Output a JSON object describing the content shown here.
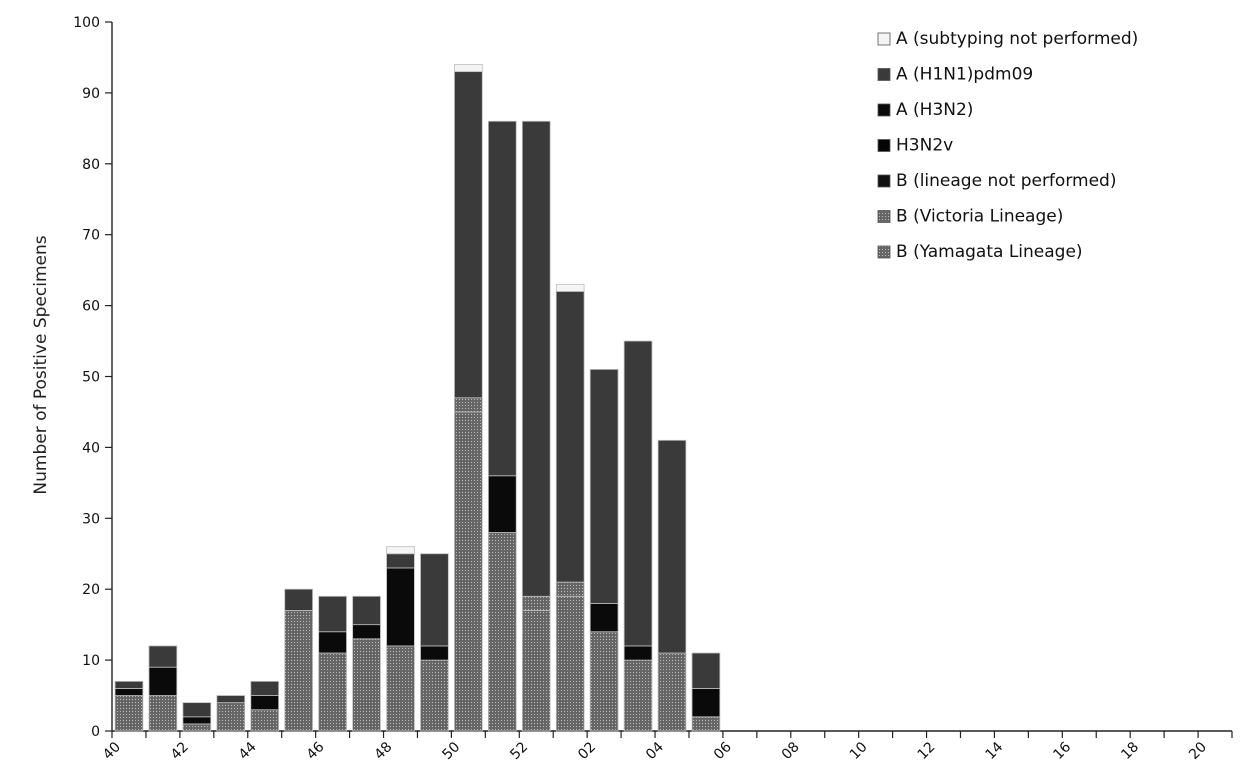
{
  "chart_data": {
    "type": "bar",
    "stacked": true,
    "title": "",
    "xlabel": "",
    "ylabel": "Number of Positive Specimens",
    "ylim": [
      0,
      100
    ],
    "yticks": [
      0,
      10,
      20,
      30,
      40,
      50,
      60,
      70,
      80,
      90,
      100
    ],
    "grid": false,
    "legend_position": "top-right",
    "categories": [
      "40",
      "41",
      "42",
      "43",
      "44",
      "45",
      "46",
      "47",
      "48",
      "49",
      "50",
      "51",
      "52",
      "01",
      "02",
      "03",
      "04",
      "05",
      "06",
      "07",
      "08",
      "09",
      "10",
      "11",
      "12",
      "13",
      "14",
      "15",
      "16",
      "17",
      "18",
      "19",
      "20"
    ],
    "tick_labels": [
      "40",
      "42",
      "44",
      "46",
      "48",
      "50",
      "52",
      "02",
      "04",
      "06",
      "08",
      "10",
      "12",
      "14",
      "16",
      "18",
      "20"
    ],
    "series": [
      {
        "name": "B (Yamagata Lineage)",
        "color": "#2b2b2b",
        "values": [
          5,
          5,
          1,
          4,
          3,
          17,
          11,
          13,
          12,
          10,
          45,
          28,
          17,
          19,
          14,
          10,
          11,
          2,
          0,
          0,
          0,
          0,
          0,
          0,
          0,
          0,
          0,
          0,
          0,
          0,
          0,
          0,
          0
        ]
      },
      {
        "name": "B (Victoria Lineage)",
        "color": "#8a8a8a",
        "values": [
          0,
          0,
          0,
          0,
          0,
          0,
          0,
          0,
          0,
          0,
          2,
          0,
          2,
          2,
          0,
          0,
          0,
          0,
          0,
          0,
          0,
          0,
          0,
          0,
          0,
          0,
          0,
          0,
          0,
          0,
          0,
          0,
          0
        ]
      },
      {
        "name": "B (lineage not performed)",
        "color": "#111111",
        "values": [
          0,
          0,
          0,
          0,
          0,
          0,
          0,
          0,
          0,
          0,
          0,
          0,
          0,
          0,
          0,
          0,
          0,
          0,
          0,
          0,
          0,
          0,
          0,
          0,
          0,
          0,
          0,
          0,
          0,
          0,
          0,
          0,
          0
        ]
      },
      {
        "name": "H3N2v",
        "color": "#050505",
        "values": [
          0,
          0,
          0,
          0,
          0,
          0,
          0,
          0,
          0,
          0,
          0,
          0,
          0,
          0,
          0,
          0,
          0,
          0,
          0,
          0,
          0,
          0,
          0,
          0,
          0,
          0,
          0,
          0,
          0,
          0,
          0,
          0,
          0
        ]
      },
      {
        "name": "A (H3N2)",
        "color": "#0a0a0a",
        "values": [
          1,
          4,
          1,
          0,
          2,
          0,
          3,
          2,
          11,
          2,
          0,
          8,
          0,
          0,
          4,
          2,
          0,
          4,
          0,
          0,
          0,
          0,
          0,
          0,
          0,
          0,
          0,
          0,
          0,
          0,
          0,
          0,
          0
        ]
      },
      {
        "name": "A (H1N1)pdm09",
        "color": "#3a3a3a",
        "values": [
          1,
          3,
          2,
          1,
          2,
          3,
          5,
          4,
          2,
          13,
          46,
          50,
          67,
          41,
          33,
          43,
          30,
          5,
          0,
          0,
          0,
          0,
          0,
          0,
          0,
          0,
          0,
          0,
          0,
          0,
          0,
          0,
          0
        ]
      },
      {
        "name": "A (subtyping not performed)",
        "color": "#f4f4f4",
        "values": [
          0,
          0,
          0,
          0,
          0,
          0,
          0,
          0,
          1,
          0,
          1,
          0,
          0,
          1,
          0,
          0,
          0,
          0,
          0,
          0,
          0,
          0,
          0,
          0,
          0,
          0,
          0,
          0,
          0,
          0,
          0,
          0,
          0
        ]
      }
    ],
    "legend": [
      "A (subtyping not performed)",
      "A (H1N1)pdm09",
      "A (H3N2)",
      "H3N2v",
      "B (lineage not performed)",
      "B (Victoria Lineage)",
      "B (Yamagata Lineage)"
    ]
  }
}
